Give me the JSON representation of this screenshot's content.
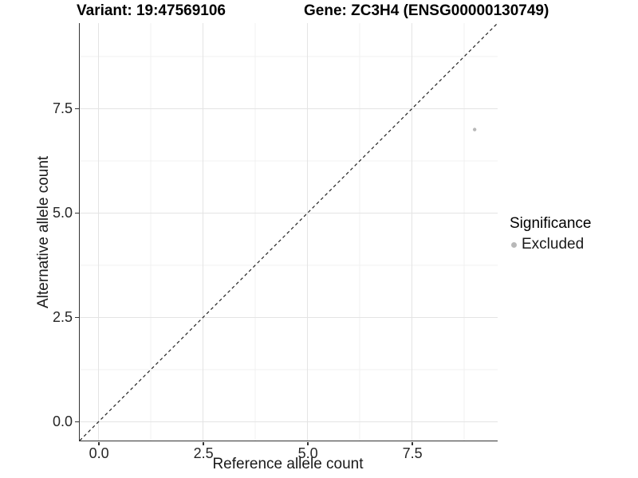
{
  "chart_data": {
    "type": "scatter",
    "title_left": "Variant: 19:47569106",
    "title_right": "Gene: ZC3H4 (ENSG00000130749)",
    "xlabel": "Reference allele count",
    "ylabel": "Alternative allele count",
    "x_ticks": [
      0,
      2.5,
      5,
      7.5
    ],
    "y_ticks": [
      0,
      2.5,
      5,
      7.5
    ],
    "x_tick_labels": [
      "0.0",
      "2.5",
      "5.0",
      "7.5"
    ],
    "y_tick_labels": [
      "0.0",
      "2.5",
      "5.0",
      "7.5"
    ],
    "x_range": [
      -0.45,
      9.55
    ],
    "y_range": [
      -0.45,
      9.55
    ],
    "grid": {
      "major": true,
      "minor": true
    },
    "reference_line": {
      "slope": 1,
      "intercept": 0,
      "style": "dashed",
      "color": "#222222"
    },
    "series": [
      {
        "name": "Excluded",
        "color": "#b8b8b8",
        "points": [
          {
            "x": 9,
            "y": 7
          }
        ]
      }
    ],
    "legend": {
      "title": "Significance",
      "position": "right",
      "entries": [
        {
          "label": "Excluded",
          "color": "#b8b8b8"
        }
      ]
    },
    "style": {
      "grid_major_color": "#e4e4e4",
      "grid_minor_color": "#f0f0f0",
      "axis_line_color": "#333333",
      "tick_label_color": "#262626",
      "point_radius": 2.2,
      "legend_dot_radius": 3.5
    }
  }
}
